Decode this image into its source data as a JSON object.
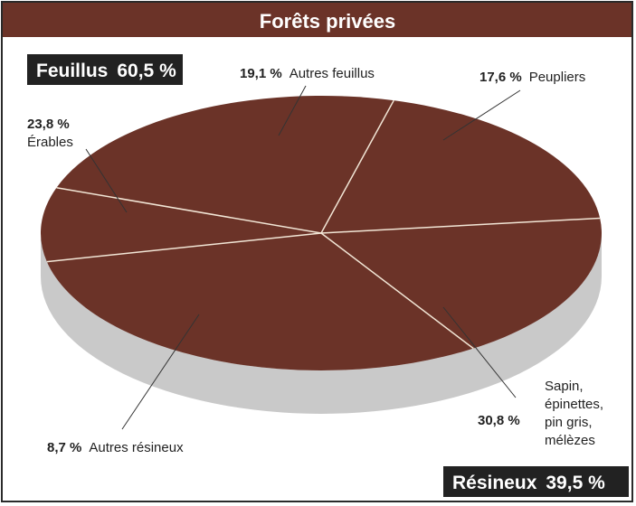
{
  "chart_data": {
    "type": "pie",
    "title": "Forêts privées",
    "groups": [
      {
        "label": "Feuillus",
        "value_label": "60,5 %"
      },
      {
        "label": "Résineux",
        "value_label": "39,5 %"
      }
    ],
    "slices": [
      {
        "value": 19.1,
        "value_label": "19,1 %",
        "label": [
          "Autres feuillus"
        ],
        "group": "Feuillus"
      },
      {
        "value": 17.6,
        "value_label": "17,6 %",
        "label": [
          "Peupliers"
        ],
        "group": "Feuillus"
      },
      {
        "value": 30.8,
        "value_label": "30,8 %",
        "label": [
          "Sapin,",
          "épinettes,",
          "pin gris,",
          "mélèzes"
        ],
        "group": "Résineux"
      },
      {
        "value": 8.7,
        "value_label": "8,7 %",
        "label": [
          "Autres résineux"
        ],
        "group": "Résineux"
      },
      {
        "value": 23.8,
        "value_label": "23,8 %",
        "label": [
          "Érables"
        ],
        "group": "Feuillus"
      }
    ],
    "colors": {
      "slice": "#6b3328",
      "side": "#c9c9c9",
      "divider": "#f2e6d6",
      "title_bar": "#6b3328",
      "group_box": "#222222"
    }
  }
}
